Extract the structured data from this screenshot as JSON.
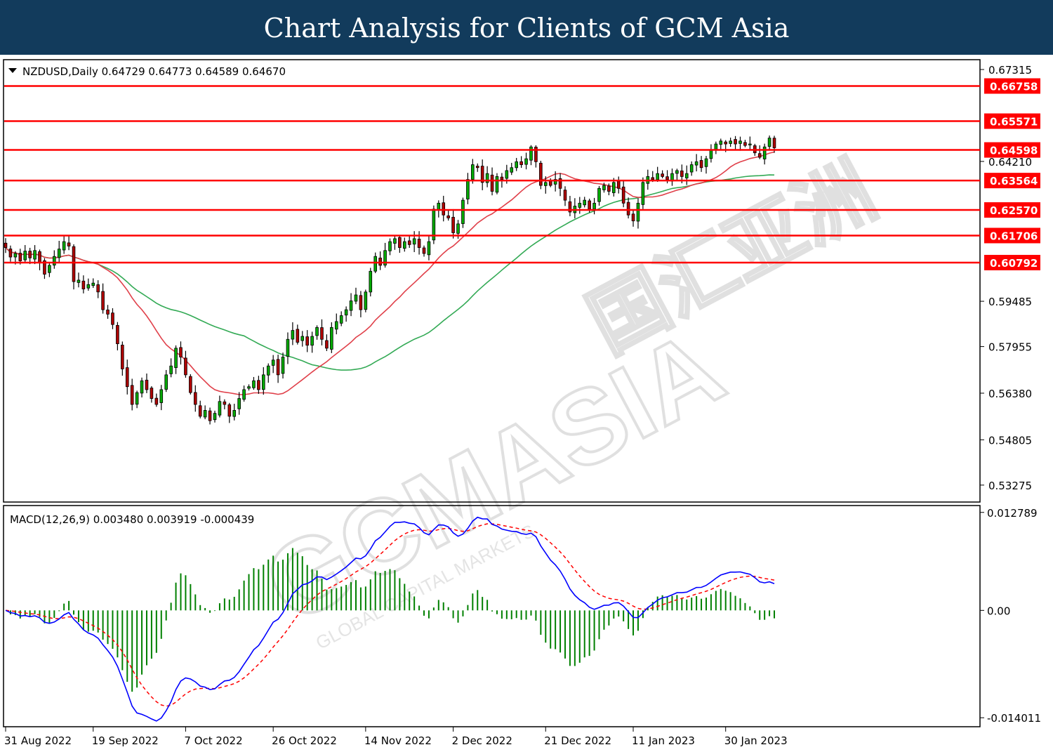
{
  "banner": {
    "title": "Chart Analysis for Clients of GCM Asia"
  },
  "watermark": {
    "brand": "GCMASIA",
    "subtitle": "GLOBAL CAPITAL MARKETS",
    "cjk": "国汇亚洲"
  },
  "chart_data": [
    {
      "type": "candlestick",
      "symbol": "NZDUSD",
      "timeframe": "Daily",
      "info_line": "NZDUSD,Daily  0.64729 0.64773 0.64589 0.64670",
      "ohlc_last": {
        "open": 0.64729,
        "high": 0.64773,
        "low": 0.64589,
        "close": 0.6467
      },
      "ylim": [
        0.5275,
        0.676
      ],
      "y_ticks": [
        "0.67315",
        "0.64210",
        "0.59485",
        "0.57955",
        "0.56380",
        "0.54805",
        "0.53275"
      ],
      "x_labels": [
        "31 Aug 2022",
        "19 Sep 2022",
        "7 Oct 2022",
        "26 Oct 2022",
        "14 Nov 2022",
        "2 Dec 2022",
        "21 Dec 2022",
        "11 Jan 2023",
        "30 Jan 2023"
      ],
      "levels": [
        {
          "label": "0.66758",
          "value": 0.66758
        },
        {
          "label": "0.65571",
          "value": 0.65571
        },
        {
          "label": "0.64598",
          "value": 0.64598
        },
        {
          "label": "0.63564",
          "value": 0.63564
        },
        {
          "label": "0.62570",
          "value": 0.6257
        },
        {
          "label": "0.61706",
          "value": 0.61706
        },
        {
          "label": "0.60792",
          "value": 0.60792
        }
      ],
      "closes": [
        0.613,
        0.6098,
        0.611,
        0.6085,
        0.6118,
        0.6095,
        0.612,
        0.608,
        0.604,
        0.607,
        0.61,
        0.6125,
        0.615,
        0.6135,
        0.6015,
        0.602,
        0.599,
        0.6005,
        0.601,
        0.598,
        0.592,
        0.5905,
        0.587,
        0.5805,
        0.572,
        0.566,
        0.56,
        0.564,
        0.568,
        0.565,
        0.562,
        0.56,
        0.565,
        0.57,
        0.573,
        0.579,
        0.576,
        0.57,
        0.564,
        0.56,
        0.556,
        0.558,
        0.5545,
        0.557,
        0.561,
        0.56,
        0.556,
        0.558,
        0.562,
        0.565,
        0.566,
        0.568,
        0.565,
        0.57,
        0.573,
        0.575,
        0.57,
        0.576,
        0.582,
        0.585,
        0.581,
        0.583,
        0.58,
        0.583,
        0.586,
        0.582,
        0.579,
        0.586,
        0.588,
        0.59,
        0.592,
        0.595,
        0.597,
        0.592,
        0.598,
        0.605,
        0.61,
        0.607,
        0.612,
        0.615,
        0.616,
        0.613,
        0.615,
        0.614,
        0.616,
        0.613,
        0.611,
        0.615,
        0.626,
        0.628,
        0.624,
        0.623,
        0.618,
        0.621,
        0.629,
        0.636,
        0.641,
        0.64,
        0.635,
        0.638,
        0.632,
        0.637,
        0.636,
        0.639,
        0.64,
        0.642,
        0.641,
        0.643,
        0.647,
        0.642,
        0.634,
        0.635,
        0.634,
        0.636,
        0.633,
        0.629,
        0.625,
        0.627,
        0.628,
        0.629,
        0.626,
        0.628,
        0.633,
        0.634,
        0.632,
        0.635,
        0.633,
        0.628,
        0.624,
        0.622,
        0.628,
        0.635,
        0.637,
        0.636,
        0.638,
        0.637,
        0.636,
        0.638,
        0.639,
        0.637,
        0.638,
        0.641,
        0.642,
        0.64,
        0.643,
        0.646,
        0.648,
        0.649,
        0.648,
        0.649,
        0.648,
        0.649,
        0.6475,
        0.648,
        0.645,
        0.6435,
        0.647,
        0.65,
        0.6467
      ]
    },
    {
      "type": "macd",
      "info_line": "MACD(12,26,9) 0.003480 0.003919 -0.000439",
      "params": [
        12,
        26,
        9
      ],
      "values": {
        "macd": 0.00348,
        "signal": 0.003919,
        "histogram": -0.000439
      },
      "ylim": [
        -0.015,
        0.0135
      ],
      "y_ticks": [
        "0.012789",
        "0.00",
        "-0.014011"
      ],
      "series": [
        {
          "key": "macd",
          "color": "#0000ff"
        },
        {
          "key": "signal",
          "color": "#ff0000"
        },
        {
          "key": "histogram",
          "color": "#008000"
        }
      ]
    }
  ],
  "colors": {
    "banner_bg": "#123b5c",
    "bull": "#00aa00",
    "bear": "#b00000",
    "level": "#ff0000",
    "ma_fast": "#e0404a",
    "ma_slow": "#33aa55"
  }
}
